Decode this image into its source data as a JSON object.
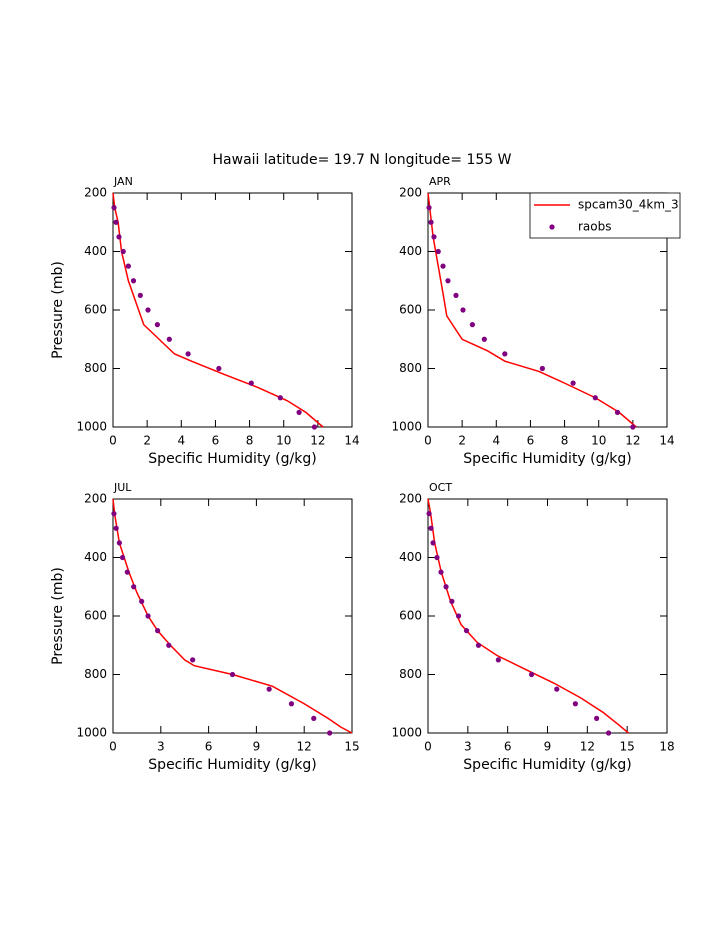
{
  "title": "Hawaii  latitude= 19.7 N longitude= 155 W",
  "chart_data": [
    {
      "type": "line",
      "title": "JAN",
      "xlabel": "Specific Humidity (g/kg)",
      "ylabel": "Pressure (mb)",
      "xlim": [
        0,
        14
      ],
      "xticks": [
        0,
        2,
        4,
        6,
        8,
        10,
        12,
        14
      ],
      "ylim": [
        1000,
        200
      ],
      "yticks": [
        200,
        400,
        600,
        800,
        1000
      ],
      "series": [
        {
          "name": "spcam30_4km_3",
          "type": "line",
          "color": "#ff0000",
          "x": [
            0,
            0.1,
            0.3,
            0.5,
            0.9,
            1.5,
            1.8,
            2.7,
            3.6,
            4.6,
            6.5,
            8.5,
            10.2,
            11.3,
            12.3
          ],
          "values": [
            200,
            250,
            300,
            400,
            500,
            600,
            650,
            700,
            750,
            775,
            820,
            865,
            910,
            950,
            1000
          ]
        },
        {
          "name": "raobs",
          "type": "scatter",
          "color": "#800080",
          "x": [
            0.06,
            0.18,
            0.35,
            0.6,
            0.9,
            1.2,
            1.6,
            2.05,
            2.6,
            3.3,
            4.4,
            6.2,
            8.1,
            9.8,
            10.9,
            11.8
          ],
          "values": [
            250,
            300,
            350,
            400,
            450,
            500,
            550,
            600,
            650,
            700,
            750,
            800,
            850,
            900,
            950,
            1000
          ]
        }
      ]
    },
    {
      "type": "line",
      "title": "APR",
      "xlabel": "Specific Humidity (g/kg)",
      "legend": "upper right",
      "xlim": [
        0,
        14
      ],
      "xticks": [
        0,
        2,
        4,
        6,
        8,
        10,
        12,
        14
      ],
      "ylim": [
        1000,
        200
      ],
      "yticks": [
        200,
        400,
        600,
        800,
        1000
      ],
      "series": [
        {
          "name": "spcam30_4km_3",
          "type": "line",
          "color": "#ff0000",
          "x": [
            0,
            0.1,
            0.3,
            0.6,
            0.9,
            1.1,
            2.0,
            3.5,
            4.5,
            6.5,
            8,
            9.8,
            11.2,
            12.2
          ],
          "values": [
            200,
            250,
            350,
            450,
            550,
            620,
            700,
            740,
            775,
            810,
            850,
            900,
            950,
            1000
          ]
        },
        {
          "name": "raobs",
          "type": "scatter",
          "color": "#800080",
          "x": [
            0.06,
            0.18,
            0.35,
            0.6,
            0.88,
            1.17,
            1.64,
            2.05,
            2.6,
            3.3,
            4.5,
            6.7,
            8.5,
            9.8,
            11.1,
            12.0
          ],
          "values": [
            250,
            300,
            350,
            400,
            450,
            500,
            550,
            600,
            650,
            700,
            750,
            800,
            850,
            900,
            950,
            1000
          ]
        }
      ]
    },
    {
      "type": "line",
      "title": "JUL",
      "xlabel": "Specific Humidity (g/kg)",
      "ylabel": "Pressure (mb)",
      "xlim": [
        0,
        15
      ],
      "xticks": [
        0,
        3,
        6,
        9,
        12,
        15
      ],
      "ylim": [
        1000,
        200
      ],
      "yticks": [
        200,
        400,
        600,
        800,
        1000
      ],
      "series": [
        {
          "name": "spcam30_4km_3",
          "type": "line",
          "color": "#ff0000",
          "x": [
            0,
            0.1,
            0.4,
            1.0,
            1.5,
            2.2,
            2.8,
            3.6,
            4.5,
            5.1,
            7.5,
            10,
            12,
            13.5,
            14.3,
            15
          ],
          "values": [
            200,
            250,
            350,
            450,
            520,
            600,
            650,
            700,
            750,
            770,
            800,
            840,
            900,
            950,
            980,
            1000
          ]
        },
        {
          "name": "raobs",
          "type": "scatter",
          "color": "#800080",
          "x": [
            0.06,
            0.2,
            0.4,
            0.6,
            0.9,
            1.3,
            1.8,
            2.2,
            2.8,
            3.5,
            5.0,
            7.5,
            9.8,
            11.2,
            12.6,
            13.6
          ],
          "values": [
            250,
            300,
            350,
            400,
            450,
            500,
            550,
            600,
            650,
            700,
            750,
            800,
            850,
            900,
            950,
            1000
          ]
        }
      ]
    },
    {
      "type": "line",
      "title": "OCT",
      "xlabel": "Specific Humidity (g/kg)",
      "xlim": [
        0,
        18
      ],
      "xticks": [
        0,
        3,
        6,
        9,
        12,
        15,
        18
      ],
      "ylim": [
        1000,
        200
      ],
      "yticks": [
        200,
        400,
        600,
        800,
        1000
      ],
      "series": [
        {
          "name": "spcam30_4km_3",
          "type": "line",
          "color": "#ff0000",
          "x": [
            0,
            0.2,
            0.5,
            1.0,
            1.7,
            2.5,
            3.7,
            5.2,
            7,
            9.5,
            11.5,
            13.2,
            14.3,
            15.1
          ],
          "values": [
            200,
            250,
            350,
            450,
            550,
            630,
            690,
            735,
            775,
            830,
            880,
            930,
            970,
            1000
          ]
        },
        {
          "name": "raobs",
          "type": "scatter",
          "color": "#800080",
          "x": [
            0.08,
            0.23,
            0.38,
            0.68,
            0.98,
            1.36,
            1.8,
            2.3,
            2.9,
            3.8,
            5.3,
            7.8,
            9.7,
            11.1,
            12.7,
            13.6
          ],
          "values": [
            250,
            300,
            350,
            400,
            450,
            500,
            550,
            600,
            650,
            700,
            750,
            800,
            850,
            900,
            950,
            1000
          ]
        }
      ]
    }
  ]
}
